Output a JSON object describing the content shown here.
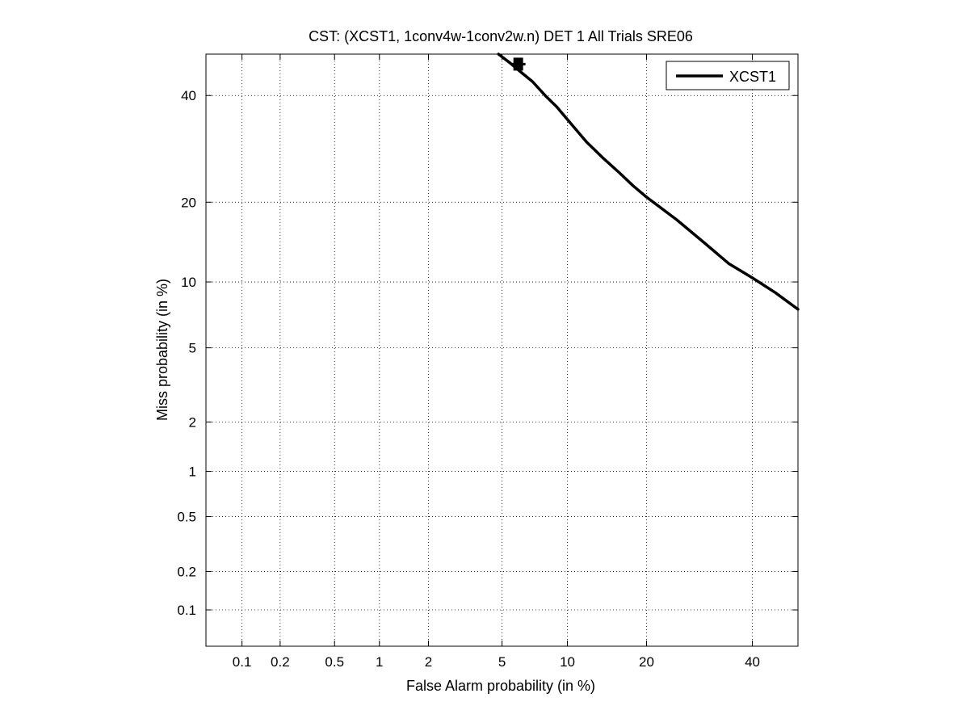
{
  "chart_data": {
    "type": "line",
    "title": "CST: (XCST1, 1conv4w-1conv2w.n) DET 1 All Trials SRE06",
    "xlabel": "False Alarm probability (in %)",
    "ylabel": "Miss probability (in %)",
    "scale": "normal-deviate (DET)",
    "xlim": [
      0.05,
      50
    ],
    "ylim": [
      0.05,
      49
    ],
    "x_ticks": [
      0.1,
      0.2,
      0.5,
      1,
      2,
      5,
      10,
      20,
      40
    ],
    "x_tick_labels": [
      "0.1",
      "0.2",
      "0.5",
      "1",
      "2",
      "5",
      "10",
      "20",
      "40"
    ],
    "y_ticks": [
      0.1,
      0.2,
      0.5,
      1,
      2,
      5,
      10,
      20,
      40
    ],
    "y_tick_labels": [
      "0.1",
      "0.2",
      "0.5",
      "1",
      "2",
      "5",
      "10",
      "20",
      "40"
    ],
    "grid": true,
    "legend_position": "top-right",
    "series": [
      {
        "name": "XCST1",
        "color": "#000000",
        "x": [
          4.8,
          5.5,
          6.2,
          7.0,
          8.0,
          9.0,
          10.0,
          12.0,
          14.0,
          16.0,
          18.0,
          20.0,
          25.0,
          30.0,
          35.0,
          40.0,
          45.0,
          50.0
        ],
        "y": [
          49.0,
          47.0,
          45.0,
          43.0,
          40.0,
          37.6,
          35.0,
          30.5,
          27.4,
          24.9,
          22.6,
          20.8,
          17.4,
          14.4,
          11.9,
          10.4,
          9.0,
          7.6
        ],
        "marker": {
          "x": 6.0,
          "y": 46.8
        }
      }
    ]
  }
}
